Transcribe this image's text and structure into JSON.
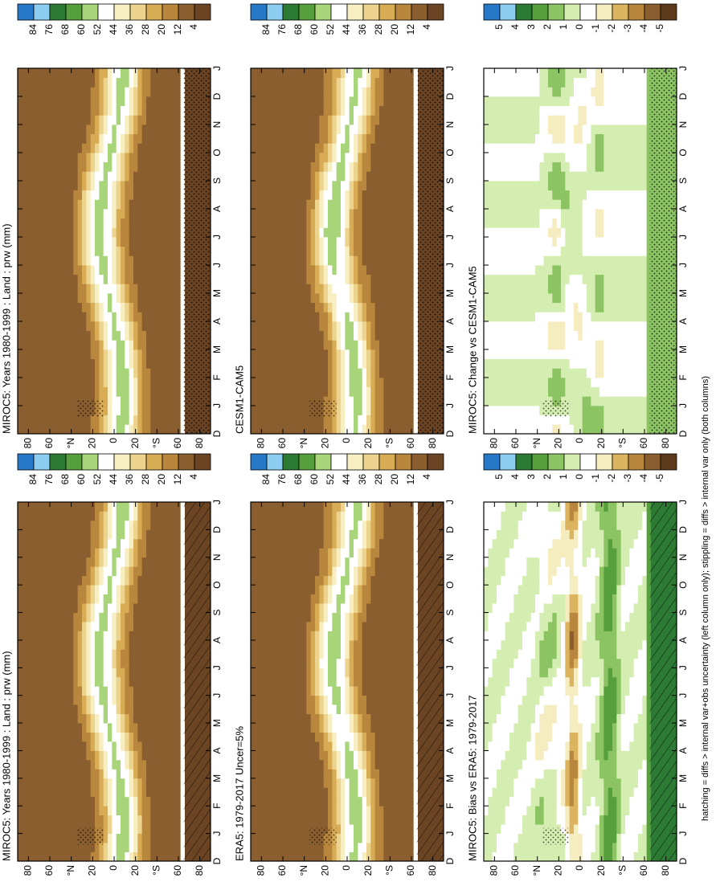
{
  "chart_data": [
    {
      "type": "contour",
      "title": "MIROC5: Years 1980-1999 : Land : prw (mm)",
      "categories": [
        "D",
        "J",
        "F",
        "M",
        "A",
        "M",
        "J",
        "J",
        "A",
        "S",
        "O",
        "N",
        "D",
        "J"
      ],
      "ylim": [
        -90,
        90
      ],
      "yticks": [
        {
          "value": 80,
          "label": "80"
        },
        {
          "value": 60,
          "label": "60"
        },
        {
          "value": 40,
          "label": "°N"
        },
        {
          "value": 20,
          "label": "20"
        },
        0,
        {
          "value": -20,
          "label": "20"
        },
        {
          "value": -40,
          "label": "°S"
        },
        {
          "value": -60,
          "label": "60"
        },
        {
          "value": -80,
          "label": "80"
        }
      ],
      "levels": [
        84,
        76,
        68,
        60,
        52,
        44,
        36,
        28,
        20,
        12,
        4
      ],
      "colors": [
        "#2878c8",
        "#8ecdf2",
        "#2d7a34",
        "#55a03c",
        "#a9d57a",
        "#ffffff",
        "#f7eec2",
        "#ecd38e",
        "#d8ab55",
        "#b8863c",
        "#8a5e2e",
        "#6b4423"
      ]
    },
    {
      "type": "contour",
      "title": "MIROC5: Years 1980-1999 : Land : prw (mm)",
      "categories": [
        "D",
        "J",
        "F",
        "M",
        "A",
        "M",
        "J",
        "J",
        "A",
        "S",
        "O",
        "N",
        "D",
        "J"
      ],
      "ylim": [
        -90,
        90
      ],
      "yticks": [
        {
          "value": 80,
          "label": "80"
        },
        {
          "value": 60,
          "label": "60"
        },
        {
          "value": 40,
          "label": "°N"
        },
        {
          "value": 20,
          "label": "20"
        },
        0,
        {
          "value": -20,
          "label": "20"
        },
        {
          "value": -40,
          "label": "°S"
        },
        {
          "value": -60,
          "label": "60"
        },
        {
          "value": -80,
          "label": "80"
        }
      ],
      "levels": [
        84,
        76,
        68,
        60,
        52,
        44,
        36,
        28,
        20,
        12,
        4
      ],
      "colors": [
        "#2878c8",
        "#8ecdf2",
        "#2d7a34",
        "#55a03c",
        "#a9d57a",
        "#ffffff",
        "#f7eec2",
        "#ecd38e",
        "#d8ab55",
        "#b8863c",
        "#8a5e2e",
        "#6b4423"
      ]
    },
    {
      "type": "contour",
      "title": "ERA5: 1979-2017 Uncer=5%",
      "categories": [
        "D",
        "J",
        "F",
        "M",
        "A",
        "M",
        "J",
        "J",
        "A",
        "S",
        "O",
        "N",
        "D",
        "J"
      ],
      "ylim": [
        -90,
        90
      ],
      "yticks": [
        {
          "value": 80,
          "label": "80"
        },
        {
          "value": 60,
          "label": "60"
        },
        {
          "value": 40,
          "label": "°N"
        },
        {
          "value": 20,
          "label": "20"
        },
        0,
        {
          "value": -20,
          "label": "20"
        },
        {
          "value": -40,
          "label": "°S"
        },
        {
          "value": -60,
          "label": "60"
        },
        {
          "value": -80,
          "label": "80"
        }
      ],
      "levels": [
        84,
        76,
        68,
        60,
        52,
        44,
        36,
        28,
        20,
        12,
        4
      ],
      "colors": [
        "#2878c8",
        "#8ecdf2",
        "#2d7a34",
        "#55a03c",
        "#a9d57a",
        "#ffffff",
        "#f7eec2",
        "#ecd38e",
        "#d8ab55",
        "#b8863c",
        "#8a5e2e",
        "#6b4423"
      ]
    },
    {
      "type": "contour",
      "title": "CESM1-CAM5",
      "categories": [
        "D",
        "J",
        "F",
        "M",
        "A",
        "M",
        "J",
        "J",
        "A",
        "S",
        "O",
        "N",
        "D",
        "J"
      ],
      "ylim": [
        -90,
        90
      ],
      "yticks": [
        {
          "value": 80,
          "label": "80"
        },
        {
          "value": 60,
          "label": "60"
        },
        {
          "value": 40,
          "label": "°N"
        },
        {
          "value": 20,
          "label": "20"
        },
        0,
        {
          "value": -20,
          "label": "20"
        },
        {
          "value": -40,
          "label": "°S"
        },
        {
          "value": -60,
          "label": "60"
        },
        {
          "value": -80,
          "label": "80"
        }
      ],
      "levels": [
        84,
        76,
        68,
        60,
        52,
        44,
        36,
        28,
        20,
        12,
        4
      ],
      "colors": [
        "#2878c8",
        "#8ecdf2",
        "#2d7a34",
        "#55a03c",
        "#a9d57a",
        "#ffffff",
        "#f7eec2",
        "#ecd38e",
        "#d8ab55",
        "#b8863c",
        "#8a5e2e",
        "#6b4423"
      ]
    },
    {
      "type": "contour",
      "title": "MIROC5: Bias vs ERA5: 1979-2017",
      "categories": [
        "D",
        "J",
        "F",
        "M",
        "A",
        "M",
        "J",
        "J",
        "A",
        "S",
        "O",
        "N",
        "D",
        "J"
      ],
      "ylim": [
        -90,
        90
      ],
      "yticks": [
        {
          "value": 80,
          "label": "80"
        },
        {
          "value": 60,
          "label": "60"
        },
        {
          "value": 40,
          "label": "°N"
        },
        {
          "value": 20,
          "label": "20"
        },
        0,
        {
          "value": -20,
          "label": "20"
        },
        {
          "value": -40,
          "label": "°S"
        },
        {
          "value": -60,
          "label": "60"
        },
        {
          "value": -80,
          "label": "80"
        }
      ],
      "levels": [
        5,
        4,
        3,
        2,
        1,
        0,
        -1,
        -2,
        -3,
        -4,
        -5
      ],
      "colors": [
        "#2878c8",
        "#8ecdf2",
        "#2d7a34",
        "#55a03c",
        "#8cc463",
        "#d4edb0",
        "#ffffff",
        "#f5ecc0",
        "#dcb35e",
        "#b8863c",
        "#8a5e2e",
        "#5e3a1d"
      ]
    },
    {
      "type": "contour",
      "title": "MIROC5: Change vs CESM1-CAM5",
      "categories": [
        "D",
        "J",
        "F",
        "M",
        "A",
        "M",
        "J",
        "J",
        "A",
        "S",
        "O",
        "N",
        "D",
        "J"
      ],
      "ylim": [
        -90,
        90
      ],
      "yticks": [
        {
          "value": 80,
          "label": "80"
        },
        {
          "value": 60,
          "label": "60"
        },
        {
          "value": 40,
          "label": "°N"
        },
        {
          "value": 20,
          "label": "20"
        },
        0,
        {
          "value": -20,
          "label": "20"
        },
        {
          "value": -40,
          "label": "°S"
        },
        {
          "value": -60,
          "label": "60"
        },
        {
          "value": -80,
          "label": "80"
        }
      ],
      "levels": [
        5,
        4,
        3,
        2,
        1,
        0,
        -1,
        -2,
        -3,
        -4,
        -5
      ],
      "colors": [
        "#2878c8",
        "#8ecdf2",
        "#2d7a34",
        "#55a03c",
        "#8cc463",
        "#d4edb0",
        "#ffffff",
        "#f5ecc0",
        "#dcb35e",
        "#b8863c",
        "#8a5e2e",
        "#5e3a1d"
      ]
    }
  ],
  "footnote": "hatching = diffs > internal var+obs uncertainty (left column only); stippling = diffs > internal var only (both columns)"
}
